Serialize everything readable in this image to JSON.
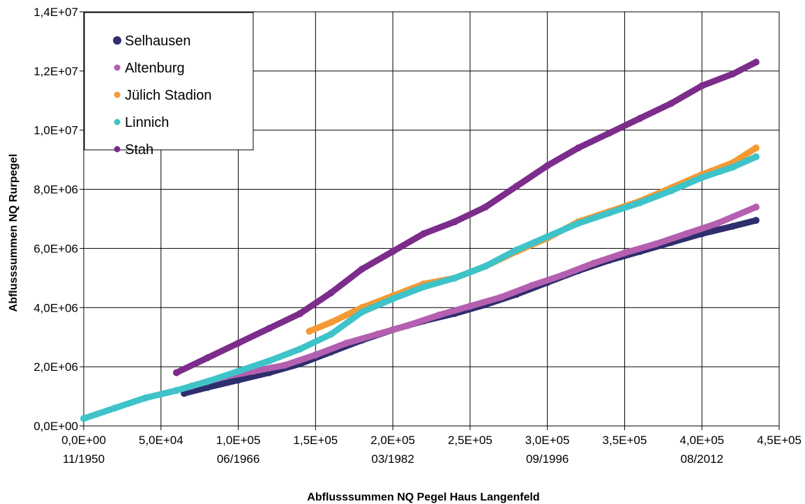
{
  "chart_data": {
    "type": "scatter",
    "xlabel": "Abflusssummen NQ Pegel Haus Langenfeld",
    "ylabel": "Abflusssummen NQ Rurpegel",
    "xlim": [
      0,
      450000
    ],
    "ylim": [
      0,
      14000000
    ],
    "grid": true,
    "legend_position": "top-left",
    "x_ticks": [
      {
        "value": 0,
        "label": "0,0E+00",
        "date": "11/1950"
      },
      {
        "value": 50000,
        "label": "5,0E+04",
        "date": ""
      },
      {
        "value": 100000,
        "label": "1,0E+05",
        "date": "06/1966"
      },
      {
        "value": 150000,
        "label": "1,5E+05",
        "date": ""
      },
      {
        "value": 200000,
        "label": "2,0E+05",
        "date": "03/1982"
      },
      {
        "value": 250000,
        "label": "2,5E+05",
        "date": ""
      },
      {
        "value": 300000,
        "label": "3,0E+05",
        "date": "09/1996"
      },
      {
        "value": 350000,
        "label": "3,5E+05",
        "date": ""
      },
      {
        "value": 400000,
        "label": "4,0E+05",
        "date": "08/2012"
      },
      {
        "value": 450000,
        "label": "4,5E+05",
        "date": ""
      }
    ],
    "y_ticks": [
      {
        "value": 0,
        "label": "0,0E+00"
      },
      {
        "value": 2000000,
        "label": "2,0E+06"
      },
      {
        "value": 4000000,
        "label": "4,0E+06"
      },
      {
        "value": 6000000,
        "label": "6,0E+06"
      },
      {
        "value": 8000000,
        "label": "8,0E+06"
      },
      {
        "value": 10000000,
        "label": "1,0E+07"
      },
      {
        "value": 12000000,
        "label": "1,2E+07"
      },
      {
        "value": 14000000,
        "label": "1,4E+07"
      }
    ],
    "series": [
      {
        "name": "Selhausen",
        "color": "#2E2D6E",
        "x": [
          65000,
          80000,
          100000,
          120000,
          140000,
          160000,
          180000,
          200000,
          220000,
          240000,
          260000,
          280000,
          300000,
          320000,
          340000,
          360000,
          380000,
          400000,
          420000,
          435000
        ],
        "y": [
          1100000,
          1300000,
          1550000,
          1800000,
          2100000,
          2500000,
          2900000,
          3250000,
          3550000,
          3800000,
          4100000,
          4450000,
          4850000,
          5250000,
          5600000,
          5900000,
          6200000,
          6500000,
          6750000,
          6950000
        ]
      },
      {
        "name": "Altenburg",
        "color": "#B45FAF",
        "x": [
          70000,
          90000,
          110000,
          130000,
          150000,
          170000,
          190000,
          210000,
          230000,
          250000,
          270000,
          290000,
          310000,
          330000,
          350000,
          370000,
          390000,
          410000,
          435000
        ],
        "y": [
          1350000,
          1650000,
          1850000,
          2050000,
          2400000,
          2800000,
          3100000,
          3400000,
          3750000,
          4050000,
          4350000,
          4750000,
          5100000,
          5500000,
          5850000,
          6150000,
          6500000,
          6850000,
          7400000
        ]
      },
      {
        "name": "Jülich Stadion",
        "color": "#F39A33",
        "x": [
          146000,
          160000,
          180000,
          200000,
          220000,
          240000,
          260000,
          280000,
          300000,
          320000,
          340000,
          360000,
          380000,
          400000,
          420000,
          435000
        ],
        "y": [
          3200000,
          3500000,
          4000000,
          4400000,
          4800000,
          5000000,
          5400000,
          5900000,
          6350000,
          6900000,
          7250000,
          7600000,
          8050000,
          8500000,
          8900000,
          9400000
        ]
      },
      {
        "name": "Linnich",
        "color": "#3EC3C9",
        "x": [
          0,
          20000,
          40000,
          60000,
          80000,
          100000,
          120000,
          140000,
          160000,
          180000,
          200000,
          220000,
          240000,
          260000,
          280000,
          300000,
          320000,
          340000,
          360000,
          380000,
          400000,
          420000,
          435000
        ],
        "y": [
          250000,
          600000,
          950000,
          1200000,
          1500000,
          1850000,
          2200000,
          2600000,
          3100000,
          3850000,
          4300000,
          4700000,
          5000000,
          5400000,
          5950000,
          6400000,
          6850000,
          7200000,
          7550000,
          7950000,
          8400000,
          8750000,
          9100000
        ]
      },
      {
        "name": "Stah",
        "color": "#7C2C8B",
        "x": [
          60000,
          80000,
          100000,
          120000,
          140000,
          160000,
          180000,
          200000,
          220000,
          240000,
          260000,
          280000,
          300000,
          320000,
          340000,
          360000,
          380000,
          400000,
          420000,
          435000
        ],
        "y": [
          1800000,
          2300000,
          2800000,
          3300000,
          3800000,
          4500000,
          5300000,
          5900000,
          6500000,
          6900000,
          7400000,
          8100000,
          8800000,
          9400000,
          9900000,
          10400000,
          10900000,
          11500000,
          11900000,
          12300000
        ]
      }
    ]
  }
}
